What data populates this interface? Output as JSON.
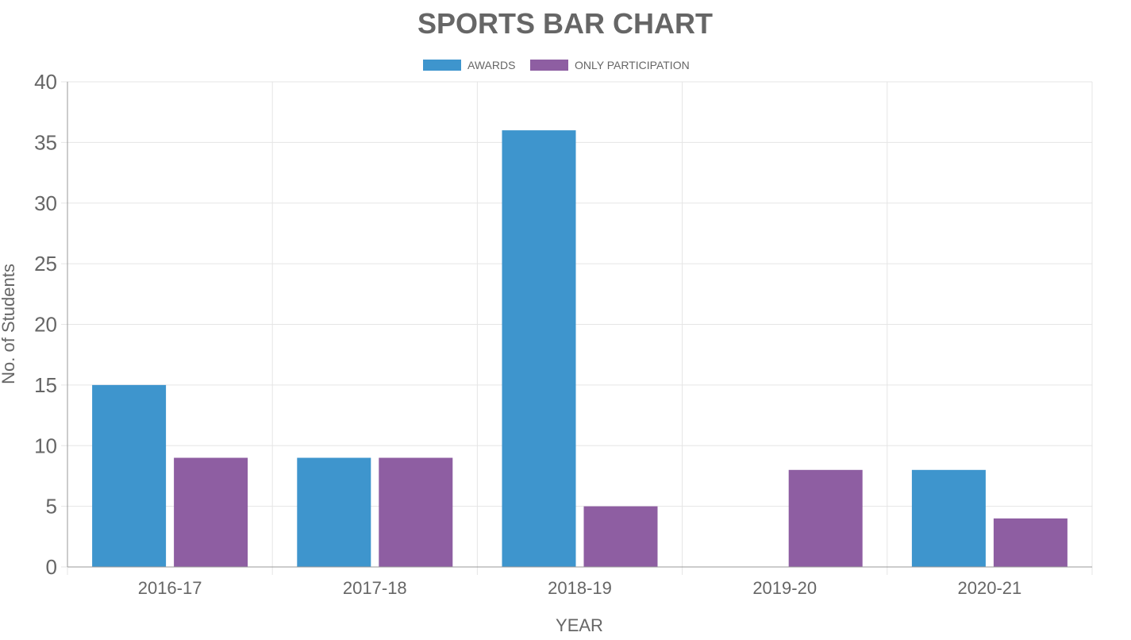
{
  "chart_data": {
    "type": "bar",
    "title": "SPORTS BAR CHART",
    "xlabel": "YEAR",
    "ylabel": "No. of Students",
    "categories": [
      "2016-17",
      "2017-18",
      "2018-19",
      "2019-20",
      "2020-21"
    ],
    "series": [
      {
        "name": "AWARDS",
        "color": "#3e95cd",
        "values": [
          15,
          9,
          36,
          0,
          8
        ]
      },
      {
        "name": "ONLY PARTICIPATION",
        "color": "#8e5ea2",
        "values": [
          9,
          9,
          5,
          8,
          4
        ]
      }
    ],
    "ylim": [
      0,
      40
    ],
    "yticks": [
      "0",
      "5",
      "10",
      "15",
      "20",
      "25",
      "30",
      "35",
      "40"
    ],
    "grid": true,
    "legend_position": "top-center"
  },
  "colors": {
    "text": "#666666",
    "grid": "#e5e5e5",
    "axis": "#999999"
  }
}
